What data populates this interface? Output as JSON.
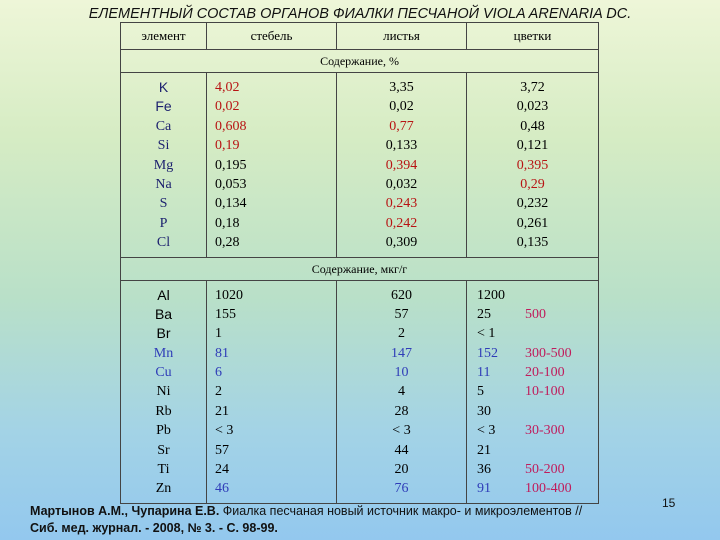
{
  "title": "ЕЛЕМЕНТНЫЙ СОСТАВ ОРГАНОВ ФИАЛКИ ПЕСЧАНОЙ VIOLA ARENARIA DC.",
  "headers": [
    "элемент",
    "стебель",
    "листья",
    "цветки"
  ],
  "section1": {
    "label": "Содержание, %",
    "elements": [
      "K",
      "Fe",
      "Ca",
      "Si",
      "Mg",
      "Na",
      "S",
      "P",
      "Cl"
    ],
    "stem": [
      "4,02",
      "0,02",
      "0,608",
      "0,19",
      "0,195",
      "0,053",
      "0,134",
      "0,18",
      "0,28"
    ],
    "leaves": [
      "3,35",
      "0,02",
      "0,77",
      "0,133",
      "0,394",
      "0,032",
      "0,243",
      "0,242",
      "0,309"
    ],
    "flowers": [
      "3,72",
      "0,023",
      "0,48",
      "0,121",
      "0,395",
      "0,29",
      "0,232",
      "0,261",
      "0,135"
    ]
  },
  "section2": {
    "label": "Содержание, мкг/г",
    "elements": [
      "Al",
      "Ba",
      "Br",
      "Mn",
      "Cu",
      "Ni",
      "Rb",
      "Pb",
      "Sr",
      "Ti",
      "Zn"
    ],
    "stem": [
      "1020",
      "155",
      "1",
      "81",
      "6",
      "2",
      "21",
      "< 3",
      "57",
      "24",
      "46"
    ],
    "leaves": [
      "620",
      "57",
      "2",
      "147",
      "10",
      "4",
      "28",
      "< 3",
      "44",
      "20",
      "76"
    ],
    "flowers": [
      "1200",
      "25",
      "< 1",
      "152",
      "11",
      "5",
      "30",
      "< 3",
      "21",
      "36",
      "91"
    ],
    "flower_ranges": [
      "",
      "500",
      "",
      "300-500",
      "20-100",
      "10-100",
      "",
      "30-300",
      "",
      "50-200",
      "100-400"
    ]
  },
  "citation": {
    "authors": "Мартынов А.М., Чупарина Е.В.",
    "text": " Фиалка песчаная новый источник макро- и микроэлементов //",
    "journal": "Сиб. мед. журнал. - 2008, № 3. - С. 98-99."
  },
  "page_number": "15",
  "colors": {
    "red": "#b81414",
    "blue": "#2f3cb8",
    "navy": "#1b1f6e",
    "range": "#c01c5c"
  }
}
